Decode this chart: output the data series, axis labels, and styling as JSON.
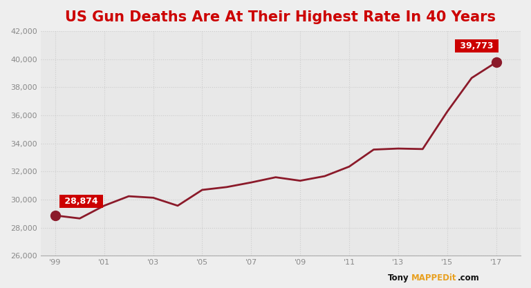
{
  "title": "US Gun Deaths Are At Their Highest Rate In 40 Years",
  "title_color": "#cc0000",
  "background_color": "#eeeeee",
  "plot_bg_color": "#e8e8e8",
  "line_color": "#8b1a2a",
  "years": [
    1999,
    2000,
    2001,
    2002,
    2003,
    2004,
    2005,
    2006,
    2007,
    2008,
    2009,
    2010,
    2011,
    2012,
    2013,
    2014,
    2015,
    2016,
    2017
  ],
  "values": [
    28874,
    28663,
    29573,
    30242,
    30136,
    29569,
    30694,
    30896,
    31224,
    31593,
    31347,
    31672,
    32351,
    33563,
    33636,
    33599,
    36252,
    38658,
    39773
  ],
  "ylim": [
    26000,
    42000
  ],
  "yticks": [
    26000,
    28000,
    30000,
    32000,
    34000,
    36000,
    38000,
    40000,
    42000
  ],
  "xticks": [
    1999,
    2001,
    2003,
    2005,
    2007,
    2009,
    2011,
    2013,
    2015,
    2017
  ],
  "annotation_start": {
    "year": 1999,
    "value": 28874,
    "label": "28,874"
  },
  "annotation_end": {
    "year": 2017,
    "value": 39773,
    "label": "39,773"
  },
  "label_bg_color": "#cc0000",
  "label_text_color": "#ffffff",
  "watermark_tony_color": "#111111",
  "watermark_mapped_color": "#e8a020",
  "watermark_it_color": "#111111",
  "grid_color": "#cccccc",
  "spine_color": "#aaaaaa",
  "tick_label_color": "#888888"
}
